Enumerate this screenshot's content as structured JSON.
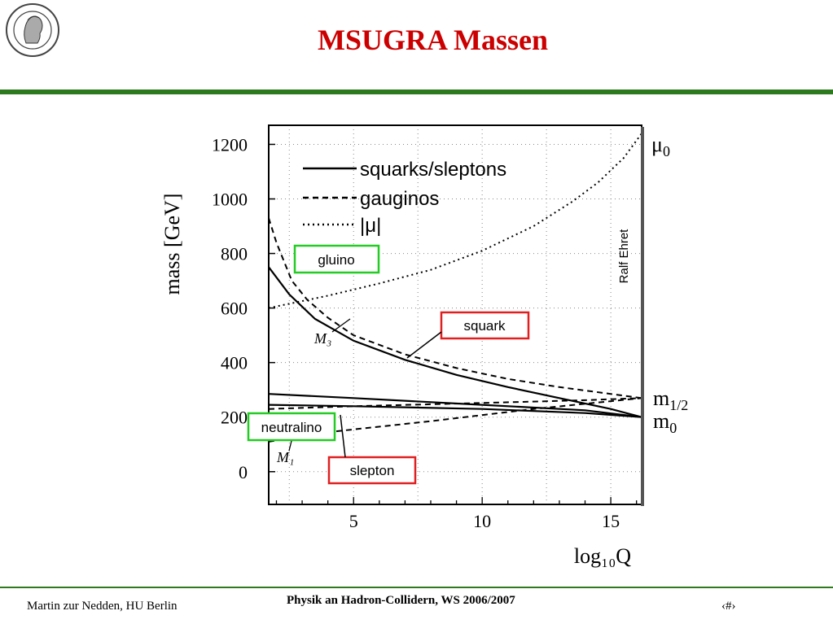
{
  "slide": {
    "title": "MSUGRA Massen",
    "footer_left": "Martin zur Nedden, HU Berlin",
    "footer_center": "Physik an Hadron-Collidern, WS 2006/2007",
    "footer_right": "‹#›",
    "logo": "humboldt-university-seal",
    "colors": {
      "title": "#cc0000",
      "rule": "#2d7a1e",
      "box_green": "#22cc22",
      "box_red": "#e02020"
    }
  },
  "chart_data": {
    "type": "line",
    "ylabel": "mass [GeV]",
    "xlabel": "log₁₀Q",
    "xlim": [
      1.7,
      16.2
    ],
    "ylim": [
      -120,
      1270
    ],
    "xticks": [
      5,
      10,
      15
    ],
    "yticks": [
      0,
      200,
      400,
      600,
      800,
      1000,
      1200
    ],
    "grid": true,
    "legend_position": "top-left",
    "legend": [
      {
        "label": "squarks/sleptons",
        "style": "solid"
      },
      {
        "label": "gauginos",
        "style": "dashed"
      },
      {
        "label": "|μ|",
        "style": "dotted"
      }
    ],
    "watermark": "Ralf Ehret",
    "right_labels": [
      {
        "text": "μ",
        "sub": "0",
        "y": 1220
      },
      {
        "text": "m",
        "sub": "1/2",
        "y": 275
      },
      {
        "text": "m",
        "sub": "0",
        "y": 200
      }
    ],
    "series": [
      {
        "style": "solid",
        "x": [
          1.7,
          2.5,
          3.5,
          5,
          7,
          9,
          11,
          13,
          15,
          16.2
        ],
        "y": [
          750,
          650,
          560,
          480,
          410,
          355,
          310,
          270,
          230,
          200
        ]
      },
      {
        "style": "dashed",
        "x": [
          1.7,
          2,
          2.6,
          3.2,
          4,
          5,
          7,
          9,
          11,
          13,
          15,
          16.2
        ],
        "y": [
          930,
          840,
          700,
          630,
          565,
          500,
          430,
          380,
          340,
          310,
          285,
          270
        ]
      },
      {
        "style": "solid",
        "x": [
          1.7,
          5,
          10,
          14,
          16.2
        ],
        "y": [
          285,
          270,
          245,
          225,
          200
        ]
      },
      {
        "style": "solid",
        "x": [
          1.7,
          5,
          10,
          14,
          16.2
        ],
        "y": [
          245,
          240,
          230,
          215,
          200
        ]
      },
      {
        "style": "dashed",
        "x": [
          1.7,
          5,
          10,
          14,
          16.2
        ],
        "y": [
          230,
          240,
          252,
          262,
          270
        ]
      },
      {
        "style": "dashed",
        "x": [
          1.7,
          4,
          8,
          12,
          16.2
        ],
        "y": [
          110,
          145,
          185,
          230,
          270
        ]
      },
      {
        "style": "dotted",
        "x": [
          1.7,
          4,
          6,
          8,
          10,
          12,
          13.5,
          14.5,
          15.5,
          16.2
        ],
        "y": [
          600,
          645,
          690,
          740,
          810,
          900,
          990,
          1060,
          1150,
          1240
        ]
      }
    ],
    "annotations": [
      {
        "label": "gluino",
        "box": "green"
      },
      {
        "label": "squark",
        "box": "red"
      },
      {
        "label": "neutralino",
        "box": "green"
      },
      {
        "label": "slepton",
        "box": "red"
      },
      {
        "label": "M₃",
        "box": "none"
      },
      {
        "label": "M₁",
        "box": "none"
      }
    ]
  }
}
